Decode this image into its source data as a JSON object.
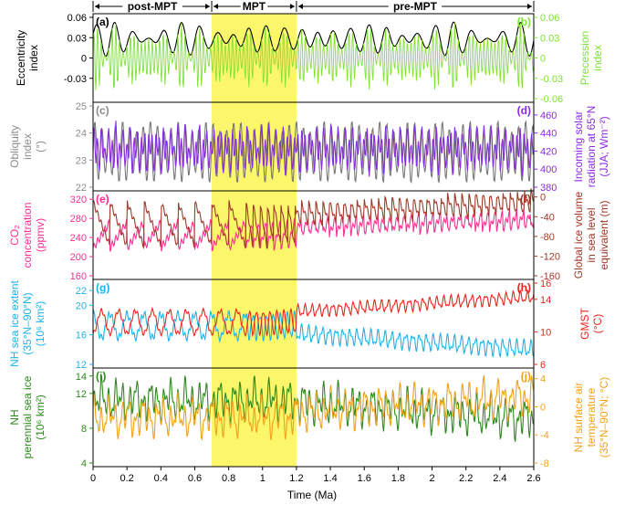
{
  "figure": {
    "xlabel": "Time (Ma)",
    "x_ticks": [
      "0",
      "0.2",
      "0.4",
      "0.6",
      "0.8",
      "1",
      "1.2",
      "1.4",
      "1.6",
      "1.8",
      "2",
      "2.2",
      "2.4",
      "2.6"
    ],
    "epochs": [
      {
        "label": "post-MPT",
        "from": 0,
        "to": 0.7
      },
      {
        "label": "MPT",
        "from": 0.7,
        "to": 1.2
      },
      {
        "label": "pre-MPT",
        "from": 1.2,
        "to": 2.6
      }
    ]
  },
  "chart_data": [
    {
      "type": "line",
      "panel": "ab",
      "xlim": [
        0,
        2.6
      ],
      "left": {
        "ylabel": "Eccentricity\nindex",
        "color": "#000000",
        "ylim": [
          -0.06,
          0.06
        ],
        "ticks": [
          "0.06",
          "0.03",
          "0",
          "-0.03"
        ],
        "letter": "(a)"
      },
      "right": {
        "ylabel": "Precession\nindex",
        "color": "#7fe234",
        "ylim": [
          -0.06,
          0.06
        ],
        "ticks": [
          "0.06",
          "0.03",
          "0",
          "-0.03",
          "-0.06"
        ],
        "letter": "(b)"
      },
      "series": [
        {
          "name": "Eccentricity",
          "axis": "left",
          "color": "#000000"
        },
        {
          "name": "Precession",
          "axis": "right",
          "color": "#7fe234"
        }
      ]
    },
    {
      "type": "line",
      "panel": "cd",
      "xlim": [
        0,
        2.6
      ],
      "left": {
        "ylabel": "Obliquity\nindex\n(°)",
        "color": "#8c8c8c",
        "ylim": [
          22,
          25
        ],
        "ticks": [
          "25",
          "24",
          "23",
          "22"
        ],
        "letter": "(c)"
      },
      "right": {
        "ylabel": "Incoming solar\nradiation at 65°N\n(JJA; Wm⁻²)",
        "color": "#8a2be2",
        "ylim": [
          380,
          470
        ],
        "ticks": [
          "460",
          "440",
          "420",
          "400",
          "380"
        ],
        "letter": "(d)"
      },
      "series": [
        {
          "name": "Obliquity",
          "axis": "left",
          "color": "#7a7a7a"
        },
        {
          "name": "Insolation",
          "axis": "right",
          "color": "#8a2be2"
        }
      ]
    },
    {
      "type": "line",
      "panel": "ef",
      "xlim": [
        0,
        2.6
      ],
      "left": {
        "ylabel": "CO₂\nconcentration\n(ppmv)",
        "color": "#ff2e93",
        "ylim": [
          160,
          330
        ],
        "ticks": [
          "320",
          "280",
          "240",
          "200",
          "160"
        ],
        "letter": "(e)"
      },
      "right": {
        "ylabel": "Global ice volume\nin sea level\nequivalent (m)",
        "color": "#a03a2a",
        "ylim": [
          -160,
          5
        ],
        "ticks": [
          "0",
          "-40",
          "-80",
          "-120",
          "-160"
        ],
        "letter": "(f)"
      },
      "series": [
        {
          "name": "CO2",
          "axis": "left",
          "color": "#ff2e93"
        },
        {
          "name": "Ice volume",
          "axis": "right",
          "color": "#a03a2a"
        }
      ]
    },
    {
      "type": "line",
      "panel": "gh",
      "xlim": [
        0,
        2.6
      ],
      "left": {
        "ylabel": "NH sea ice extent\n(35°N–90°N)\n(10⁶ km²)",
        "color": "#1fb2e8",
        "ylim": [
          12,
          23
        ],
        "ticks": [
          "22",
          "20",
          "16",
          "12"
        ],
        "letter": "(g)"
      },
      "right": {
        "ylabel": "GMST\n(°C)",
        "color": "#e8241c",
        "ylim": [
          6,
          16
        ],
        "ticks": [
          "16",
          "14",
          "10",
          "6"
        ],
        "letter": "(h)"
      },
      "series": [
        {
          "name": "Sea ice extent",
          "axis": "left",
          "color": "#1fb2e8"
        },
        {
          "name": "GMST",
          "axis": "right",
          "color": "#e8241c"
        }
      ]
    },
    {
      "type": "line",
      "panel": "ij",
      "xlim": [
        0,
        2.6
      ],
      "left": {
        "ylabel": "NH\nperennial sea ice\n(10⁶ km²)",
        "color": "#2e8a1e",
        "ylim": [
          4,
          14.5
        ],
        "ticks": [
          "14",
          "12",
          "8",
          "4"
        ],
        "letter": "(i)"
      },
      "right": {
        "ylabel": "NH surface air\ntemperature\n(35°N–90°N; °C)",
        "color": "#f0a21a",
        "ylim": [
          -8,
          5
        ],
        "ticks": [
          "4",
          "0",
          "-4",
          "-8"
        ],
        "letter": "(j)"
      },
      "series": [
        {
          "name": "Perennial sea ice",
          "axis": "left",
          "color": "#2e8a1e"
        },
        {
          "name": "NH SAT",
          "axis": "right",
          "color": "#f0a21a"
        }
      ]
    }
  ]
}
